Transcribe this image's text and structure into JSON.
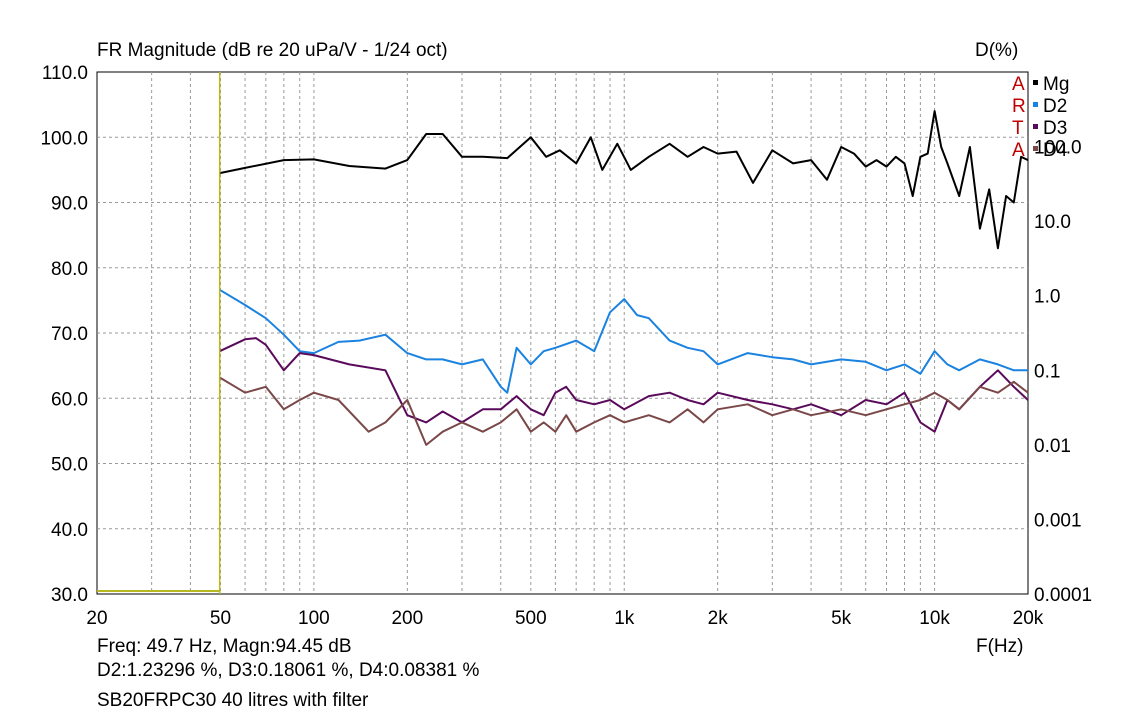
{
  "header": {
    "title": "FR Magnitude (dB re 20 uPa/V - 1/24 oct)",
    "right_axis_title": "D(%)",
    "x_axis_label": "F(Hz)"
  },
  "watermark": [
    "A",
    "R",
    "T",
    "A"
  ],
  "readout": {
    "line1": "Freq: 49.7 Hz, Magn:94.45 dB",
    "line2": "D2:1.23296 %, D3:0.18061 %, D4:0.08381 %",
    "line3": "SB20FRPC30 40 litres with filter"
  },
  "colors": {
    "Mg": "#000000",
    "D2": "#1a82e0",
    "D3": "#5a0a5a",
    "D4": "#7a4848",
    "cursor": "#b8b820",
    "grid": "#9a9a9a"
  },
  "chart_data": {
    "type": "line",
    "title": "FR Magnitude (dB re 20 uPa/V - 1/24 oct)",
    "xlabel": "F(Hz)",
    "ylabel": "",
    "y2label": "D(%)",
    "x_scale": "log",
    "xlim": [
      20,
      20000
    ],
    "ylim": [
      30,
      110
    ],
    "y2lim": [
      0.0001,
      1000
    ],
    "y2_scale": "log",
    "grid": true,
    "legend_position": "top-right",
    "x_ticks": [
      "20",
      "50",
      "100",
      "200",
      "500",
      "1k",
      "2k",
      "5k",
      "10k",
      "20k"
    ],
    "y_ticks": [
      "30.0",
      "40.0",
      "50.0",
      "60.0",
      "70.0",
      "80.0",
      "90.0",
      "100.0",
      "110.0"
    ],
    "y2_ticks": [
      "0.0001",
      "0.001",
      "0.01",
      "0.1",
      "1.0",
      "10.0",
      "100.0"
    ],
    "cursor_freq": 49.7,
    "series": [
      {
        "name": "Mg",
        "axis": "left",
        "x": [
          49.7,
          60,
          80,
          100,
          130,
          170,
          200,
          230,
          260,
          300,
          350,
          420,
          500,
          560,
          620,
          700,
          780,
          850,
          950,
          1050,
          1200,
          1400,
          1600,
          1800,
          2000,
          2300,
          2600,
          3000,
          3500,
          4000,
          4500,
          5000,
          5500,
          6000,
          6500,
          7000,
          7500,
          8000,
          8500,
          9000,
          9500,
          10000,
          10500,
          11000,
          12000,
          13000,
          14000,
          15000,
          16000,
          17000,
          18000,
          19000,
          20000
        ],
        "y": [
          94.5,
          95.3,
          96.5,
          96.6,
          95.6,
          95.2,
          96.5,
          100.5,
          100.5,
          97,
          97,
          96.8,
          100,
          97,
          98,
          96,
          100,
          95,
          99,
          95,
          97,
          99,
          97,
          98.5,
          97.5,
          97.8,
          93,
          98,
          96,
          96.5,
          93.5,
          98.5,
          97.5,
          95.5,
          96.5,
          95.5,
          97,
          96,
          91,
          97,
          97.5,
          104,
          98.5,
          96,
          91,
          98.5,
          86,
          92,
          83,
          91,
          90,
          97,
          96.5
        ]
      },
      {
        "name": "D2",
        "axis": "right",
        "x": [
          49.7,
          60,
          70,
          80,
          90,
          100,
          120,
          140,
          170,
          200,
          230,
          260,
          300,
          350,
          400,
          420,
          450,
          500,
          550,
          600,
          700,
          800,
          900,
          1000,
          1100,
          1200,
          1400,
          1600,
          1800,
          2000,
          2500,
          3000,
          3500,
          4000,
          5000,
          6000,
          7000,
          8000,
          9000,
          10000,
          11000,
          12000,
          14000,
          16000,
          18000,
          20000
        ],
        "y": [
          1.2,
          0.75,
          0.5,
          0.3,
          0.18,
          0.17,
          0.24,
          0.25,
          0.3,
          0.17,
          0.14,
          0.14,
          0.12,
          0.14,
          0.06,
          0.05,
          0.2,
          0.12,
          0.18,
          0.2,
          0.25,
          0.18,
          0.6,
          0.9,
          0.55,
          0.5,
          0.25,
          0.2,
          0.18,
          0.12,
          0.17,
          0.15,
          0.14,
          0.12,
          0.14,
          0.13,
          0.1,
          0.12,
          0.09,
          0.18,
          0.12,
          0.1,
          0.14,
          0.12,
          0.1,
          0.1
        ]
      },
      {
        "name": "D3",
        "axis": "right",
        "x": [
          49.7,
          60,
          65,
          70,
          80,
          90,
          100,
          130,
          170,
          200,
          230,
          260,
          300,
          350,
          400,
          450,
          500,
          550,
          600,
          650,
          700,
          800,
          900,
          1000,
          1200,
          1400,
          1600,
          1800,
          2000,
          2500,
          3000,
          3500,
          4000,
          5000,
          6000,
          7000,
          8000,
          9000,
          10000,
          11000,
          12000,
          14000,
          16000,
          18000,
          20000
        ],
        "y": [
          0.18,
          0.26,
          0.27,
          0.22,
          0.1,
          0.17,
          0.16,
          0.12,
          0.1,
          0.025,
          0.02,
          0.028,
          0.02,
          0.03,
          0.03,
          0.045,
          0.03,
          0.025,
          0.05,
          0.06,
          0.04,
          0.035,
          0.04,
          0.03,
          0.045,
          0.05,
          0.04,
          0.035,
          0.05,
          0.04,
          0.035,
          0.03,
          0.035,
          0.025,
          0.04,
          0.035,
          0.05,
          0.02,
          0.015,
          0.04,
          0.03,
          0.06,
          0.1,
          0.06,
          0.04
        ]
      },
      {
        "name": "D4",
        "axis": "right",
        "x": [
          49.7,
          60,
          70,
          80,
          90,
          100,
          120,
          150,
          170,
          200,
          230,
          260,
          300,
          350,
          400,
          450,
          500,
          550,
          600,
          650,
          700,
          800,
          900,
          1000,
          1200,
          1400,
          1600,
          1800,
          2000,
          2500,
          3000,
          3500,
          4000,
          5000,
          6000,
          7000,
          8000,
          9000,
          10000,
          11000,
          12000,
          14000,
          16000,
          18000,
          20000
        ],
        "y": [
          0.08,
          0.05,
          0.06,
          0.03,
          0.04,
          0.05,
          0.04,
          0.015,
          0.02,
          0.04,
          0.01,
          0.015,
          0.02,
          0.015,
          0.02,
          0.03,
          0.015,
          0.02,
          0.015,
          0.025,
          0.015,
          0.02,
          0.025,
          0.02,
          0.025,
          0.02,
          0.03,
          0.02,
          0.03,
          0.035,
          0.025,
          0.03,
          0.025,
          0.03,
          0.025,
          0.03,
          0.035,
          0.04,
          0.05,
          0.04,
          0.03,
          0.06,
          0.05,
          0.07,
          0.05
        ]
      }
    ]
  }
}
